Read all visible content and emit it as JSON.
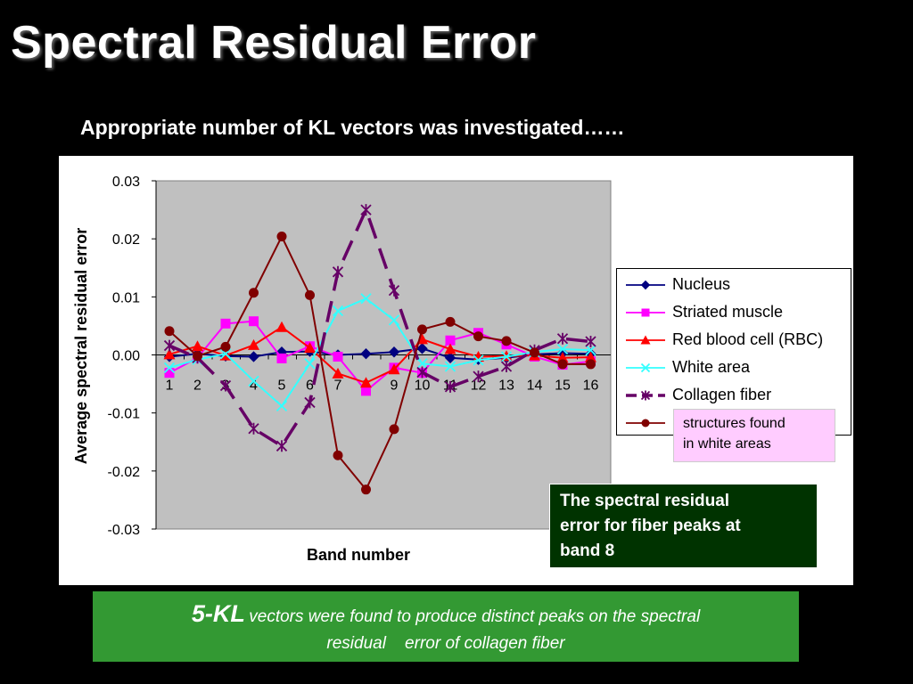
{
  "slide": {
    "title": "Spectral Residual Error",
    "subtitle": "Appropriate number of KL vectors was investigated……",
    "pink_note": [
      "structures found",
      "in white areas"
    ],
    "green_note": [
      "The spectral residual",
      "error for fiber peaks at",
      "band 8"
    ],
    "bottom_note": {
      "lead": "5-KL",
      "line1_rest": "vectors were found to produce distinct peaks on the spectral",
      "line2": "residual    error of collagen fiber"
    }
  },
  "chart_data": {
    "type": "line",
    "xlabel": "Band number",
    "ylabel": "Average spectral residual error",
    "ylim": [
      -0.03,
      0.03
    ],
    "yticks": [
      "0.03",
      "0.02",
      "0.01",
      "0.00",
      "-0.01",
      "-0.02",
      "-0.03"
    ],
    "categories": [
      "1",
      "2",
      "3",
      "4",
      "5",
      "6",
      "7",
      "8",
      "9",
      "10",
      "11",
      "12",
      "13",
      "14",
      "15",
      "16"
    ],
    "plot_background": "#c0c0c0",
    "series": [
      {
        "name": "Nucleus",
        "color": "#000080",
        "marker": "diamond",
        "dash": false,
        "values": [
          -0.0003,
          0.0002,
          -0.0002,
          -0.0003,
          0.0005,
          0.0006,
          0.0,
          0.0002,
          0.0005,
          0.0011,
          -0.0005,
          -0.0008,
          -0.0005,
          0.0001,
          0.0003,
          0.0002
        ]
      },
      {
        "name": "Striated muscle",
        "color": "#ff00ff",
        "marker": "square",
        "dash": false,
        "values": [
          -0.0031,
          -0.0005,
          0.0054,
          0.0058,
          -0.0006,
          0.0015,
          -0.0003,
          -0.0062,
          -0.0022,
          -0.0031,
          0.0025,
          0.0038,
          0.0018,
          -0.0003,
          -0.0017,
          -0.0011
        ]
      },
      {
        "name": "Red blood cell (RBC)",
        "color": "#ff0000",
        "marker": "triangle",
        "dash": false,
        "values": [
          0.0001,
          0.0015,
          -0.0001,
          0.0017,
          0.0048,
          0.0012,
          -0.0032,
          -0.0048,
          -0.0025,
          0.0027,
          0.001,
          -0.0003,
          -0.0002,
          -0.0001,
          -0.0005,
          -0.0004
        ]
      },
      {
        "name": "White area",
        "color": "#33ffff",
        "marker": "x",
        "dash": false,
        "values": [
          -0.0022,
          -0.0008,
          0.0002,
          -0.0045,
          -0.0088,
          -0.0015,
          0.0076,
          0.0097,
          0.006,
          -0.0015,
          -0.002,
          -0.0009,
          -0.0003,
          0.0005,
          0.001,
          0.0008
        ]
      },
      {
        "name": "Collagen fiber",
        "color": "#660066",
        "marker": "asterisk",
        "dash": true,
        "values": [
          0.0016,
          -0.0005,
          -0.0053,
          -0.0127,
          -0.0157,
          -0.0082,
          0.0143,
          0.025,
          0.0111,
          -0.003,
          -0.0055,
          -0.0037,
          -0.002,
          0.0008,
          0.0028,
          0.0023
        ]
      },
      {
        "name": "",
        "color": "#800000",
        "marker": "circle",
        "dash": false,
        "values": [
          0.0041,
          -0.0002,
          0.0014,
          0.0107,
          0.0204,
          0.0103,
          -0.0173,
          -0.0232,
          -0.0128,
          0.0044,
          0.0057,
          0.0032,
          0.0024,
          0.0004,
          -0.0016,
          -0.0016
        ]
      }
    ]
  }
}
